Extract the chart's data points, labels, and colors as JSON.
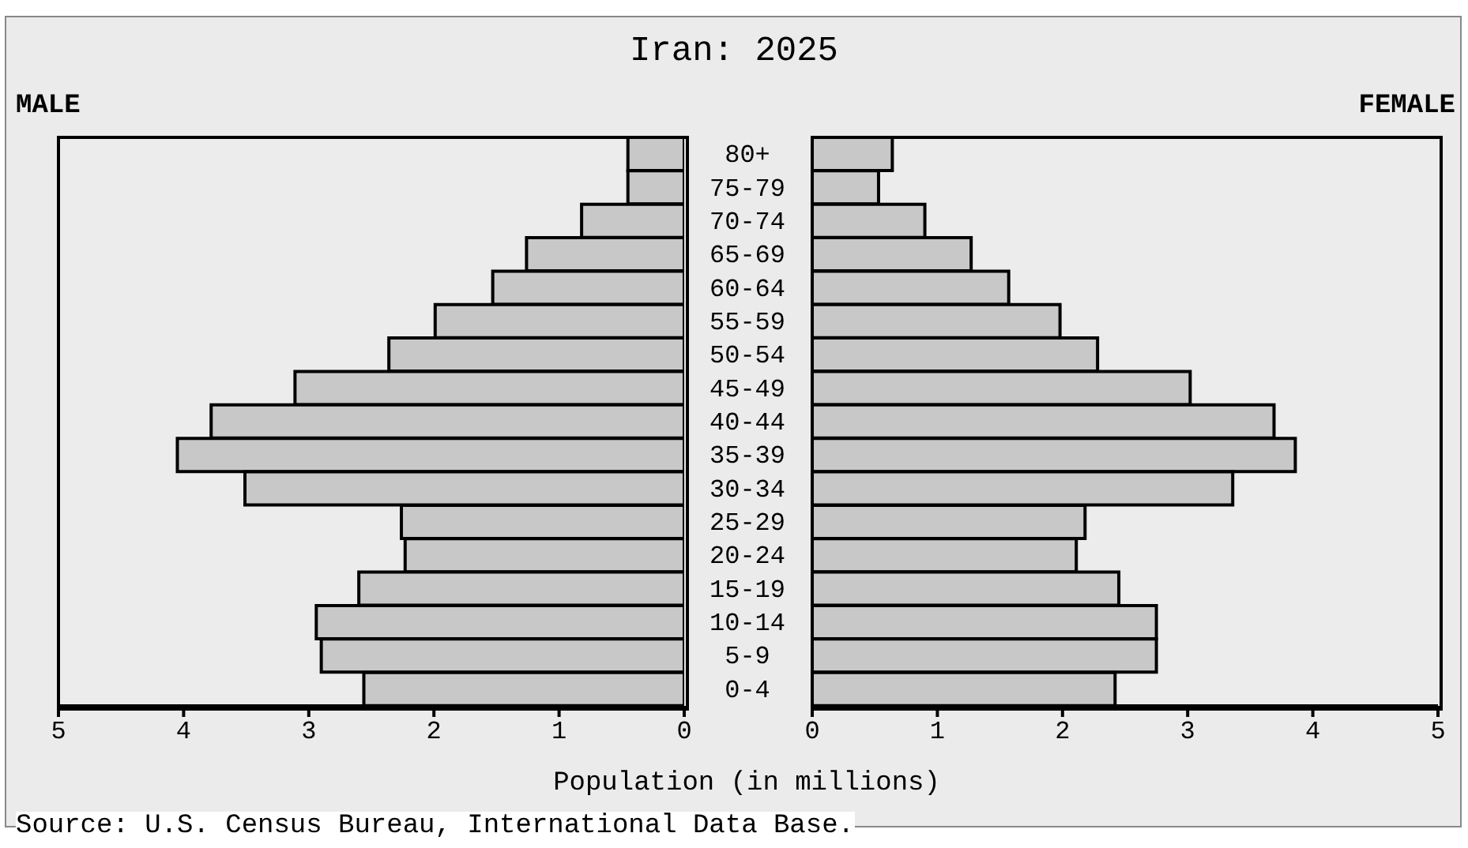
{
  "chart_data": [
    {
      "type": "bar",
      "orientation": "horizontal",
      "title": "Iran: 2025",
      "xlabel": "Population (in millions)",
      "annotations": [
        "Source: U.S. Census Bureau, International Data Base."
      ],
      "categories": [
        "80+",
        "75-79",
        "70-74",
        "65-69",
        "60-64",
        "55-59",
        "50-54",
        "45-49",
        "40-44",
        "35-39",
        "30-34",
        "25-29",
        "20-24",
        "15-19",
        "10-14",
        "5-9",
        "0-4"
      ],
      "series": [
        {
          "name": "MALE",
          "color": "#c8c8c8",
          "values": [
            0.45,
            0.45,
            0.82,
            1.26,
            1.53,
            1.99,
            2.36,
            3.11,
            3.78,
            4.05,
            3.51,
            2.26,
            2.23,
            2.6,
            2.94,
            2.9,
            2.56
          ]
        }
      ],
      "xlim": [
        5,
        0
      ],
      "xticks": [
        0,
        1,
        2,
        3,
        4,
        5
      ]
    },
    {
      "type": "bar",
      "orientation": "horizontal",
      "categories": [
        null,
        null,
        null,
        null,
        null,
        null,
        null,
        null,
        null,
        null,
        null,
        null,
        null,
        null,
        null,
        null,
        null
      ],
      "series": [
        {
          "name": "FEMALE",
          "color": "#c8c8c8",
          "values": [
            0.64,
            0.53,
            0.9,
            1.27,
            1.57,
            1.98,
            2.28,
            3.02,
            3.69,
            3.86,
            3.36,
            2.18,
            2.11,
            2.45,
            2.75,
            2.75,
            2.42
          ]
        }
      ],
      "xlim": [
        0,
        5
      ],
      "xticks": [
        0,
        1,
        2,
        3,
        4,
        5
      ],
      "tick_labels": "x"
    }
  ]
}
